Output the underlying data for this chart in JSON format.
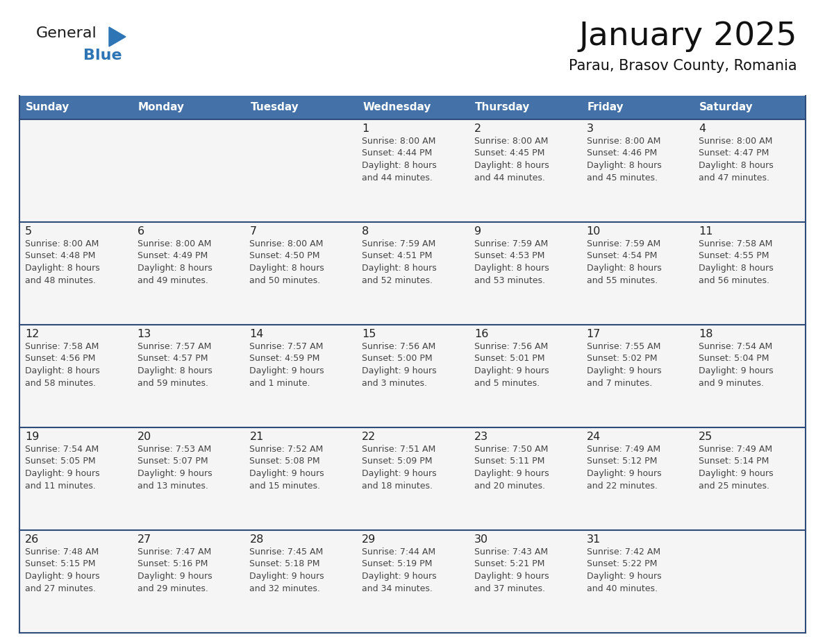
{
  "title": "January 2025",
  "subtitle": "Parau, Brasov County, Romania",
  "days_of_week": [
    "Sunday",
    "Monday",
    "Tuesday",
    "Wednesday",
    "Thursday",
    "Friday",
    "Saturday"
  ],
  "header_bg": "#4472A8",
  "header_text": "#FFFFFF",
  "cell_bg": "#F5F5F5",
  "row_line_color": "#2E4B7A",
  "text_color": "#333333",
  "day_num_color": "#222222",
  "info_text_color": "#444444",
  "logo_general_color": "#1a1a1a",
  "logo_blue_color": "#2E75B6",
  "calendar_data": {
    "week1": [
      {
        "day": "",
        "info": ""
      },
      {
        "day": "",
        "info": ""
      },
      {
        "day": "",
        "info": ""
      },
      {
        "day": "1",
        "info": "Sunrise: 8:00 AM\nSunset: 4:44 PM\nDaylight: 8 hours\nand 44 minutes."
      },
      {
        "day": "2",
        "info": "Sunrise: 8:00 AM\nSunset: 4:45 PM\nDaylight: 8 hours\nand 44 minutes."
      },
      {
        "day": "3",
        "info": "Sunrise: 8:00 AM\nSunset: 4:46 PM\nDaylight: 8 hours\nand 45 minutes."
      },
      {
        "day": "4",
        "info": "Sunrise: 8:00 AM\nSunset: 4:47 PM\nDaylight: 8 hours\nand 47 minutes."
      }
    ],
    "week2": [
      {
        "day": "5",
        "info": "Sunrise: 8:00 AM\nSunset: 4:48 PM\nDaylight: 8 hours\nand 48 minutes."
      },
      {
        "day": "6",
        "info": "Sunrise: 8:00 AM\nSunset: 4:49 PM\nDaylight: 8 hours\nand 49 minutes."
      },
      {
        "day": "7",
        "info": "Sunrise: 8:00 AM\nSunset: 4:50 PM\nDaylight: 8 hours\nand 50 minutes."
      },
      {
        "day": "8",
        "info": "Sunrise: 7:59 AM\nSunset: 4:51 PM\nDaylight: 8 hours\nand 52 minutes."
      },
      {
        "day": "9",
        "info": "Sunrise: 7:59 AM\nSunset: 4:53 PM\nDaylight: 8 hours\nand 53 minutes."
      },
      {
        "day": "10",
        "info": "Sunrise: 7:59 AM\nSunset: 4:54 PM\nDaylight: 8 hours\nand 55 minutes."
      },
      {
        "day": "11",
        "info": "Sunrise: 7:58 AM\nSunset: 4:55 PM\nDaylight: 8 hours\nand 56 minutes."
      }
    ],
    "week3": [
      {
        "day": "12",
        "info": "Sunrise: 7:58 AM\nSunset: 4:56 PM\nDaylight: 8 hours\nand 58 minutes."
      },
      {
        "day": "13",
        "info": "Sunrise: 7:57 AM\nSunset: 4:57 PM\nDaylight: 8 hours\nand 59 minutes."
      },
      {
        "day": "14",
        "info": "Sunrise: 7:57 AM\nSunset: 4:59 PM\nDaylight: 9 hours\nand 1 minute."
      },
      {
        "day": "15",
        "info": "Sunrise: 7:56 AM\nSunset: 5:00 PM\nDaylight: 9 hours\nand 3 minutes."
      },
      {
        "day": "16",
        "info": "Sunrise: 7:56 AM\nSunset: 5:01 PM\nDaylight: 9 hours\nand 5 minutes."
      },
      {
        "day": "17",
        "info": "Sunrise: 7:55 AM\nSunset: 5:02 PM\nDaylight: 9 hours\nand 7 minutes."
      },
      {
        "day": "18",
        "info": "Sunrise: 7:54 AM\nSunset: 5:04 PM\nDaylight: 9 hours\nand 9 minutes."
      }
    ],
    "week4": [
      {
        "day": "19",
        "info": "Sunrise: 7:54 AM\nSunset: 5:05 PM\nDaylight: 9 hours\nand 11 minutes."
      },
      {
        "day": "20",
        "info": "Sunrise: 7:53 AM\nSunset: 5:07 PM\nDaylight: 9 hours\nand 13 minutes."
      },
      {
        "day": "21",
        "info": "Sunrise: 7:52 AM\nSunset: 5:08 PM\nDaylight: 9 hours\nand 15 minutes."
      },
      {
        "day": "22",
        "info": "Sunrise: 7:51 AM\nSunset: 5:09 PM\nDaylight: 9 hours\nand 18 minutes."
      },
      {
        "day": "23",
        "info": "Sunrise: 7:50 AM\nSunset: 5:11 PM\nDaylight: 9 hours\nand 20 minutes."
      },
      {
        "day": "24",
        "info": "Sunrise: 7:49 AM\nSunset: 5:12 PM\nDaylight: 9 hours\nand 22 minutes."
      },
      {
        "day": "25",
        "info": "Sunrise: 7:49 AM\nSunset: 5:14 PM\nDaylight: 9 hours\nand 25 minutes."
      }
    ],
    "week5": [
      {
        "day": "26",
        "info": "Sunrise: 7:48 AM\nSunset: 5:15 PM\nDaylight: 9 hours\nand 27 minutes."
      },
      {
        "day": "27",
        "info": "Sunrise: 7:47 AM\nSunset: 5:16 PM\nDaylight: 9 hours\nand 29 minutes."
      },
      {
        "day": "28",
        "info": "Sunrise: 7:45 AM\nSunset: 5:18 PM\nDaylight: 9 hours\nand 32 minutes."
      },
      {
        "day": "29",
        "info": "Sunrise: 7:44 AM\nSunset: 5:19 PM\nDaylight: 9 hours\nand 34 minutes."
      },
      {
        "day": "30",
        "info": "Sunrise: 7:43 AM\nSunset: 5:21 PM\nDaylight: 9 hours\nand 37 minutes."
      },
      {
        "day": "31",
        "info": "Sunrise: 7:42 AM\nSunset: 5:22 PM\nDaylight: 9 hours\nand 40 minutes."
      },
      {
        "day": "",
        "info": ""
      }
    ]
  }
}
